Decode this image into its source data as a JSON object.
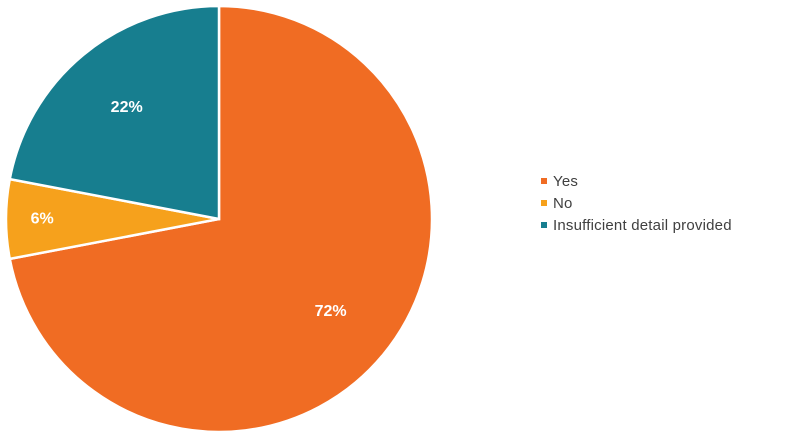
{
  "chart_data": {
    "type": "pie",
    "title": "",
    "slices": [
      {
        "label": "Yes",
        "value": 72,
        "value_label": "72%",
        "color": "#f06c23"
      },
      {
        "label": "No",
        "value": 6,
        "value_label": "6%",
        "color": "#f6a11c"
      },
      {
        "label": "Insufficient detail provided",
        "value": 22,
        "value_label": "22%",
        "color": "#177e8f"
      }
    ],
    "start_angle_deg": 0,
    "direction": "clockwise",
    "legend_position": "right"
  }
}
